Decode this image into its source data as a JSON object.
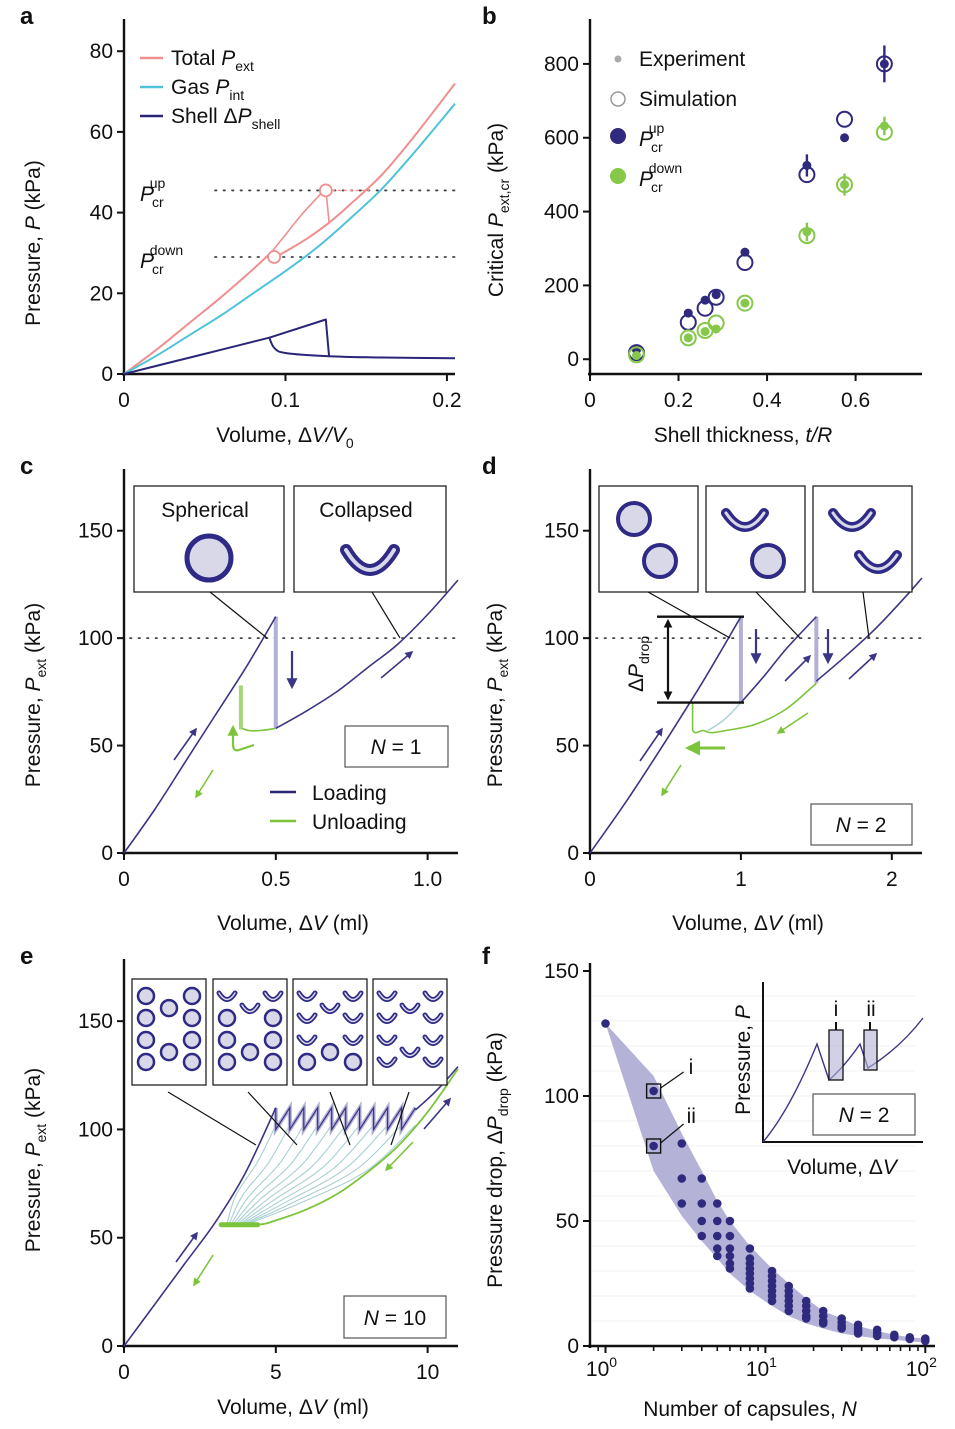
{
  "colors": {
    "total": "#ef8f8f",
    "gas": "#4fc3d9",
    "shell": "#2a2677",
    "loading": "#3a3585",
    "unloading": "#7cc43a",
    "drop_fill": "#b3b0d6",
    "transition": "#a9cfd3",
    "band": "#a7a4d0",
    "axis": "#111111"
  },
  "chart_data": [
    {
      "id": "a",
      "panel_label": "a",
      "type": "line",
      "xlabel": "Volume, ΔV/V0",
      "ylabel": "Pressure, P (kPa)",
      "xlim": [
        0,
        0.205
      ],
      "ylim": [
        0,
        86
      ],
      "xticks": [
        0,
        0.1,
        0.2
      ],
      "xtick_labels": [
        "0",
        "0.1",
        "0.2"
      ],
      "yticks": [
        0,
        20,
        40,
        60,
        80
      ],
      "ytick_labels": [
        "0",
        "20",
        "40",
        "60",
        "80"
      ],
      "legend": [
        "Total P_ext",
        "Gas P_int",
        "Shell ΔP_shell"
      ],
      "legend_position": "top-left",
      "series": [
        {
          "name": "Total P_ext",
          "key": "total",
          "x": [
            0,
            0.02,
            0.04,
            0.06,
            0.08,
            0.092,
            0.1,
            0.11,
            0.125,
            0.14,
            0.16,
            0.18,
            0.205
          ],
          "y": [
            0,
            6,
            12.5,
            19,
            26.5,
            31,
            34,
            38.5,
            46,
            44,
            51,
            60,
            72
          ]
        },
        {
          "name": "Gas P_int",
          "key": "gas",
          "x": [
            0,
            0.02,
            0.04,
            0.06,
            0.08,
            0.1,
            0.12,
            0.14,
            0.16,
            0.18,
            0.205
          ],
          "y": [
            0,
            4.5,
            9.5,
            14.5,
            20,
            25.5,
            31.5,
            38.5,
            46,
            55,
            67
          ]
        },
        {
          "name": "Shell ΔP_shell",
          "key": "shell",
          "x": [
            0,
            0.03,
            0.06,
            0.09,
            0.1,
            0.125,
            0.127,
            0.15,
            0.2,
            0.205
          ],
          "y": [
            0,
            3,
            6,
            9,
            10,
            13.5,
            4.3,
            4.1,
            3.9,
            3.9
          ]
        }
      ],
      "annotations": [
        {
          "label": "P_cr^up",
          "value": 45.5
        },
        {
          "label": "P_cr^down",
          "value": 29
        }
      ]
    },
    {
      "id": "b",
      "panel_label": "b",
      "type": "scatter",
      "xlabel": "Shell thickness, t/R",
      "ylabel": "Critical P_ext,cr (kPa)",
      "xlim": [
        0,
        0.75
      ],
      "ylim": [
        -40,
        900
      ],
      "xticks": [
        0,
        0.2,
        0.4,
        0.6
      ],
      "xtick_labels": [
        "0",
        "0.2",
        "0.4",
        "0.6"
      ],
      "yticks": [
        0,
        200,
        400,
        600,
        800
      ],
      "ytick_labels": [
        "0",
        "200",
        "400",
        "600",
        "800"
      ],
      "legend": [
        "Experiment",
        "Simulation",
        "P_cr^up",
        "P_cr^down"
      ],
      "legend_position": "top-left",
      "x": [
        0.105,
        0.222,
        0.26,
        0.285,
        0.35,
        0.49,
        0.575,
        0.665
      ],
      "series": [
        {
          "name": "P_cr^up experiment",
          "key": "shell",
          "kind": "experiment",
          "y": [
            25,
            125,
            160,
            175,
            290,
            525,
            600,
            800
          ],
          "err": [
            0,
            0,
            0,
            0,
            0,
            30,
            0,
            50
          ]
        },
        {
          "name": "P_cr^up simulation",
          "key": "shell",
          "kind": "simulation",
          "y": [
            18,
            100,
            138,
            168,
            262,
            500,
            650,
            800
          ]
        },
        {
          "name": "P_cr^down experiment",
          "key": "unloading",
          "kind": "experiment",
          "y": [
            10,
            58,
            75,
            82,
            152,
            345,
            473,
            632
          ],
          "err": [
            0,
            0,
            0,
            0,
            0,
            25,
            30,
            25
          ]
        },
        {
          "name": "P_cr^down simulation",
          "key": "unloading",
          "kind": "simulation",
          "y": [
            12,
            58,
            78,
            98,
            152,
            335,
            473,
            615
          ]
        }
      ]
    },
    {
      "id": "c",
      "panel_label": "c",
      "type": "line",
      "xlabel": "Volume, ΔV (ml)",
      "ylabel": "Pressure, P_ext (kPa)",
      "xlim": [
        0,
        1.1
      ],
      "ylim": [
        0,
        175
      ],
      "xticks": [
        0,
        0.5,
        1.0
      ],
      "xtick_labels": [
        "0",
        "0.5",
        "1.0"
      ],
      "yticks": [
        0,
        50,
        100,
        150
      ],
      "ytick_labels": [
        "0",
        "50",
        "100",
        "150"
      ],
      "legend": [
        "Loading",
        "Unloading"
      ],
      "legend_position": "bottom-right",
      "N_label": "N = 1",
      "threshold": 100,
      "insets": [
        "Spherical",
        "Collapsed"
      ],
      "series": [
        {
          "name": "Loading (spherical)",
          "key": "loading",
          "x": [
            0,
            0.1,
            0.2,
            0.3,
            0.4,
            0.5
          ],
          "y": [
            0,
            20,
            42,
            64,
            86,
            110
          ]
        },
        {
          "name": "Loading (collapsed)",
          "key": "loading",
          "x": [
            0.5,
            0.6,
            0.7,
            0.8,
            0.9,
            1.0,
            1.1
          ],
          "y": [
            58,
            66,
            75,
            86,
            97,
            111,
            127
          ]
        },
        {
          "name": "Unloading",
          "key": "unloading",
          "x": [
            0.5,
            0.45,
            0.4,
            0.385,
            0.385
          ],
          "y": [
            58,
            57,
            57,
            58,
            78
          ]
        }
      ],
      "pressure_drop": {
        "x": 0.5,
        "from": 110,
        "to": 58
      },
      "unload_jump": {
        "x": 0.385,
        "from": 57.5,
        "to": 78
      }
    },
    {
      "id": "d",
      "panel_label": "d",
      "type": "line",
      "xlabel": "Volume, ΔV (ml)",
      "ylabel": "Pressure, P_ext (kPa)",
      "xlim": [
        0,
        2.2
      ],
      "ylim": [
        0,
        175
      ],
      "xticks": [
        0,
        1,
        2
      ],
      "xtick_labels": [
        "0",
        "1",
        "2"
      ],
      "yticks": [
        0,
        50,
        100,
        150
      ],
      "ytick_labels": [
        "0",
        "50",
        "100",
        "150"
      ],
      "N_label": "N = 2",
      "threshold": 100,
      "drop_label": "ΔP_drop",
      "drop_range": [
        70,
        110
      ],
      "series": [
        {
          "name": "Loading 1",
          "key": "loading",
          "x": [
            0,
            0.25,
            0.5,
            0.75,
            1.0
          ],
          "y": [
            0,
            25,
            52,
            80,
            110
          ]
        },
        {
          "name": "Loading 2",
          "key": "loading",
          "x": [
            1.0,
            1.15,
            1.3,
            1.5
          ],
          "y": [
            70,
            82,
            95,
            110
          ]
        },
        {
          "name": "Loading 3",
          "key": "loading",
          "x": [
            1.5,
            1.7,
            1.9,
            2.1,
            2.2
          ],
          "y": [
            80,
            92,
            105,
            120,
            128
          ]
        },
        {
          "name": "Unloading",
          "key": "unloading",
          "x": [
            1.5,
            1.3,
            1.1,
            0.9,
            0.8,
            0.75,
            0.7,
            0.68,
            0.68
          ],
          "y": [
            79,
            66,
            60,
            57,
            56,
            57,
            56,
            57,
            70
          ]
        }
      ],
      "pressure_drops": [
        {
          "x": 1.0,
          "from": 110,
          "to": 70
        },
        {
          "x": 1.5,
          "from": 110,
          "to": 79
        }
      ]
    },
    {
      "id": "e",
      "panel_label": "e",
      "type": "line",
      "xlabel": "Volume, ΔV (ml)",
      "ylabel": "Pressure, P_ext (kPa)",
      "xlim": [
        0,
        11
      ],
      "ylim": [
        0,
        175
      ],
      "xticks": [
        0,
        5,
        10
      ],
      "xtick_labels": [
        "0",
        "5",
        "10"
      ],
      "yticks": [
        0,
        50,
        100,
        150
      ],
      "ytick_labels": [
        "0",
        "50",
        "100",
        "150"
      ],
      "N_label": "N = 10",
      "sawtooth": {
        "start_x": 5.0,
        "end_x": 9.6,
        "top": 110,
        "bottom": 102,
        "count": 10
      },
      "series": [
        {
          "name": "Loading",
          "key": "loading",
          "x": [
            0,
            1,
            2,
            3,
            4,
            5
          ],
          "y": [
            0,
            19,
            38,
            57,
            80,
            110
          ]
        },
        {
          "name": "Loading after collapse",
          "key": "loading",
          "x": [
            9.6,
            10,
            10.5,
            11
          ],
          "y": [
            109,
            114,
            121,
            129
          ]
        },
        {
          "name": "Unloading",
          "key": "unloading",
          "x": [
            11,
            10,
            9,
            8,
            7,
            6,
            5,
            4.4,
            3.2
          ],
          "y": [
            128,
            108,
            92,
            80,
            70,
            63,
            58,
            56,
            56
          ]
        }
      ]
    },
    {
      "id": "f",
      "panel_label": "f",
      "type": "scatter",
      "xscale": "log",
      "xlabel": "Number of capsules, N",
      "ylabel": "Pressure drop, ΔP_drop (kPa)",
      "xlim": [
        0.8,
        115
      ],
      "ylim": [
        0,
        150
      ],
      "xticks": [
        1,
        10,
        100
      ],
      "xtick_labels": [
        "10^0",
        "10^1",
        "10^2"
      ],
      "yticks": [
        0,
        50,
        100,
        150
      ],
      "ytick_labels": [
        "0",
        "50",
        "100",
        "150"
      ],
      "band": {
        "N": [
          1,
          2,
          3,
          4,
          5,
          6,
          8,
          11,
          14,
          18,
          23,
          30,
          38,
          50,
          64,
          80,
          100
        ],
        "upper": [
          129,
          108,
          85,
          70,
          58,
          50,
          40,
          31,
          25,
          19,
          14,
          11,
          8,
          6,
          4.5,
          3.5,
          3
        ],
        "lower": [
          129,
          70,
          52,
          42,
          35,
          29,
          22,
          16,
          12,
          9,
          7,
          5,
          4,
          3,
          2.5,
          1.8,
          1.5
        ]
      },
      "points": [
        {
          "N": 1,
          "values": [
            129
          ]
        },
        {
          "N": 2,
          "values": [
            102,
            80
          ]
        },
        {
          "N": 3,
          "values": [
            81,
            67,
            57
          ]
        },
        {
          "N": 4,
          "values": [
            67,
            57,
            50,
            44
          ]
        },
        {
          "N": 5,
          "values": [
            57,
            50,
            44,
            39,
            36
          ]
        },
        {
          "N": 6,
          "values": [
            50,
            44,
            39,
            36,
            33,
            31
          ]
        },
        {
          "N": 8,
          "values": [
            39,
            35,
            33,
            31,
            29,
            27,
            25,
            23
          ]
        },
        {
          "N": 11,
          "values": [
            30,
            28,
            26,
            24,
            22,
            20,
            18
          ]
        },
        {
          "N": 14,
          "values": [
            24,
            22,
            20,
            18,
            16,
            14
          ]
        },
        {
          "N": 18,
          "values": [
            18,
            16,
            14,
            12,
            11
          ]
        },
        {
          "N": 23,
          "values": [
            14,
            12,
            10,
            9
          ]
        },
        {
          "N": 30,
          "values": [
            11,
            9.5,
            8,
            7
          ]
        },
        {
          "N": 38,
          "values": [
            8.5,
            7,
            6,
            5
          ]
        },
        {
          "N": 50,
          "values": [
            6.5,
            5,
            4
          ]
        },
        {
          "N": 64,
          "values": [
            4.5,
            3.5
          ]
        },
        {
          "N": 80,
          "values": [
            3.5,
            2.8
          ]
        },
        {
          "N": 100,
          "values": [
            3,
            2
          ]
        }
      ],
      "highlighted": [
        {
          "label": "i",
          "N": 2,
          "value": 102
        },
        {
          "label": "ii",
          "N": 2,
          "value": 80
        }
      ],
      "inset": {
        "xlabel": "Volume, ΔV",
        "ylabel": "Pressure, P",
        "N_label": "N = 2",
        "markers": [
          "i",
          "ii"
        ]
      }
    }
  ],
  "text": {
    "a": {
      "label": "a",
      "ylabel_pre": "Pressure, ",
      "ylabel_var": "P",
      "ylabel_post": " (kPa)",
      "xlabel_pre": "Volume, Δ",
      "xlabel_var": "V/V",
      "xlabel_sub": "0",
      "legend": [
        {
          "pre": "Total ",
          "var": "P",
          "sub": "ext"
        },
        {
          "pre": "Gas ",
          "var": "P",
          "sub": "int"
        },
        {
          "pre": "Shell Δ",
          "var": "P",
          "sub": "shell"
        }
      ],
      "pcr_up_var": "P",
      "pcr_up_sub": "cr",
      "pcr_up_sup": "up",
      "pcr_down_var": "P",
      "pcr_down_sub": "cr",
      "pcr_down_sup": "down"
    },
    "b": {
      "label": "b",
      "ylabel_pre": "Critical ",
      "ylabel_var": "P",
      "ylabel_sub": "ext,cr",
      "ylabel_post": " (kPa)",
      "xlabel_pre": "Shell thickness, ",
      "xlabel_var": "t/R",
      "legend_exp": "Experiment",
      "legend_sim": "Simulation",
      "legend_up_var": "P",
      "legend_up_sub": "cr",
      "legend_up_sup": "up",
      "legend_down_var": "P",
      "legend_down_sub": "cr",
      "legend_down_sup": "down"
    },
    "c": {
      "label": "c",
      "ylabel_pre": "Pressure, ",
      "ylabel_var": "P",
      "ylabel_sub": "ext",
      "ylabel_post": " (kPa)",
      "xlabel_pre": "Volume, Δ",
      "xlabel_var": "V",
      "xlabel_post": " (ml)",
      "inset1": "Spherical",
      "inset2": "Collapsed",
      "n_var": "N",
      "n_rest": " = 1",
      "legend_loading": "Loading",
      "legend_unloading": "Unloading"
    },
    "d": {
      "label": "d",
      "ylabel_pre": "Pressure, ",
      "ylabel_var": "P",
      "ylabel_sub": "ext",
      "ylabel_post": " (kPa)",
      "xlabel_pre": "Volume, Δ",
      "xlabel_var": "V",
      "xlabel_post": " (ml)",
      "n_var": "N",
      "n_rest": " = 2",
      "drop_pre": "Δ",
      "drop_var": "P",
      "drop_sub": "drop"
    },
    "e": {
      "label": "e",
      "ylabel_pre": "Pressure, ",
      "ylabel_var": "P",
      "ylabel_sub": "ext",
      "ylabel_post": " (kPa)",
      "xlabel_pre": "Volume, Δ",
      "xlabel_var": "V",
      "xlabel_post": " (ml)",
      "n_var": "N",
      "n_rest": " = 10"
    },
    "f": {
      "label": "f",
      "ylabel_pre": "Pressure drop, Δ",
      "ylabel_var": "P",
      "ylabel_sub": "drop",
      "ylabel_post": " (kPa)",
      "xlabel_pre": "Number of capsules, ",
      "xlabel_var": "N",
      "tick_base": "10",
      "tick_exp": [
        "0",
        "1",
        "2"
      ],
      "mark_i": "i",
      "mark_ii": "ii",
      "inset_ylabel_pre": "Pressure, ",
      "inset_ylabel_var": "P",
      "inset_xlabel_pre": "Volume, Δ",
      "inset_xlabel_var": "V",
      "n_var": "N",
      "n_rest": " = 2"
    }
  }
}
